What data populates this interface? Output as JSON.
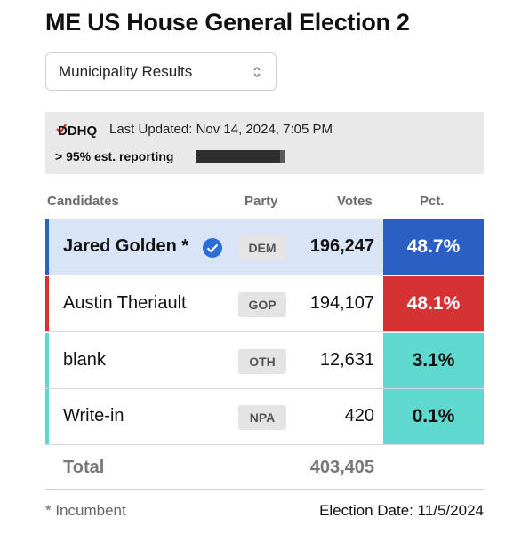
{
  "title": "ME US House General Election 2",
  "view_select": {
    "value": "Municipality Results",
    "icon": "chevron-up-down-icon"
  },
  "info": {
    "logo_text": "DDHQ",
    "last_updated": "Last Updated: Nov 14, 2024, 7:05 PM",
    "reporting": "> 95% est. reporting",
    "reporting_fraction": 0.95
  },
  "table": {
    "headers": {
      "candidates": "Candidates",
      "party": "Party",
      "votes": "Votes",
      "pct": "Pct."
    },
    "rows": [
      {
        "name": "Jared Golden *",
        "winner": true,
        "party": "DEM",
        "votes": "196,247",
        "pct": "48.7%",
        "accent": "#2b5fc4",
        "pct_bg": "#2b5fc4",
        "pct_fg": "#ffffff",
        "row_bg": "#d9e4f6"
      },
      {
        "name": "Austin Theriault",
        "winner": false,
        "party": "GOP",
        "votes": "194,107",
        "pct": "48.1%",
        "accent": "#d53333",
        "pct_bg": "#d53333",
        "pct_fg": "#ffffff",
        "row_bg": "#ffffff"
      },
      {
        "name": "blank",
        "winner": false,
        "party": "OTH",
        "votes": "12,631",
        "pct": "3.1%",
        "accent": "#5fd9cf",
        "pct_bg": "#5fd9cf",
        "pct_fg": "#111111",
        "row_bg": "#ffffff"
      },
      {
        "name": "Write-in",
        "winner": false,
        "party": "NPA",
        "votes": "420",
        "pct": "0.1%",
        "accent": "#5fd9cf",
        "pct_bg": "#5fd9cf",
        "pct_fg": "#111111",
        "row_bg": "#ffffff"
      }
    ],
    "total_label": "Total",
    "total_votes": "403,405"
  },
  "footer": {
    "note": "* Incumbent",
    "election_date": "Election Date: 11/5/2024"
  },
  "colors": {
    "winner_check": "#2b6fd6"
  }
}
